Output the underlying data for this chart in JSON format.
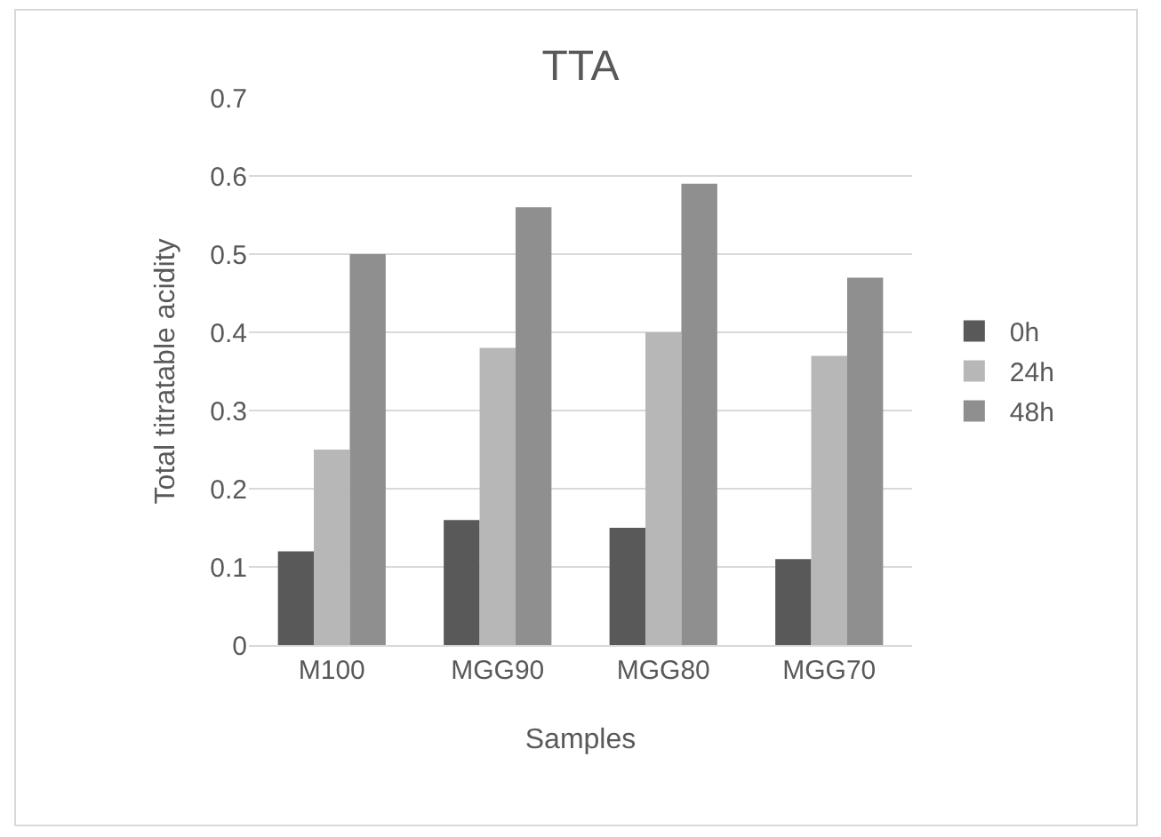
{
  "chart_data": {
    "type": "bar",
    "title": "TTA",
    "xlabel": "Samples",
    "ylabel": "Total titratable acidity",
    "categories": [
      "M100",
      "MGG90",
      "MGG80",
      "MGG70"
    ],
    "series": [
      {
        "name": "0h",
        "color": "#595959",
        "values": [
          0.12,
          0.16,
          0.15,
          0.11
        ]
      },
      {
        "name": "24h",
        "color": "#b7b7b7",
        "values": [
          0.25,
          0.38,
          0.4,
          0.37
        ]
      },
      {
        "name": "48h",
        "color": "#8f8f8f",
        "values": [
          0.5,
          0.56,
          0.59,
          0.47
        ]
      }
    ],
    "ylim": [
      0,
      0.7
    ],
    "yticks": [
      0,
      0.1,
      0.2,
      0.3,
      0.4,
      0.5,
      0.6,
      0.7
    ],
    "grid": "y",
    "legend": "right"
  }
}
